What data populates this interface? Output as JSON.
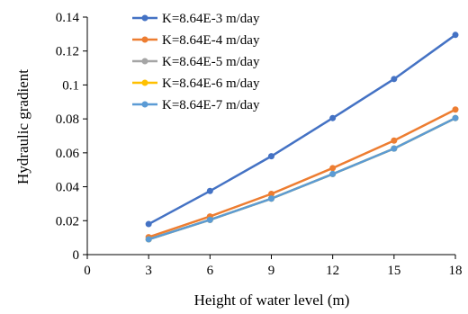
{
  "chart_data": {
    "type": "line",
    "title": "",
    "xlabel": "Height of water level (m)",
    "ylabel": "Hydraulic gradient",
    "x": [
      3,
      6,
      9,
      12,
      15,
      18
    ],
    "xlim": [
      0,
      18
    ],
    "ylim": [
      0,
      0.14
    ],
    "xticks": [
      "0",
      "3",
      "6",
      "9",
      "12",
      "15",
      "18"
    ],
    "yticks": [
      "0",
      "0.02",
      "0.04",
      "0.06",
      "0.08",
      "0.1",
      "0.12",
      "0.14"
    ],
    "grid": false,
    "legend_position": "top-right",
    "series": [
      {
        "name": "K=8.64E-3 m/day",
        "color": "#4472C4",
        "values": [
          0.018,
          0.0375,
          0.058,
          0.0805,
          0.1035,
          0.1295
        ]
      },
      {
        "name": "K=8.64E-4 m/day",
        "color": "#ED7D31",
        "values": [
          0.0103,
          0.0225,
          0.0358,
          0.051,
          0.0672,
          0.0855
        ]
      },
      {
        "name": "K=8.64E-5 m/day",
        "color": "#A5A5A5",
        "values": [
          0.009,
          0.0205,
          0.033,
          0.0475,
          0.0625,
          0.0805
        ]
      },
      {
        "name": "K=8.64E-6 m/day",
        "color": "#FFC000",
        "values": [
          0.009,
          0.0205,
          0.033,
          0.0475,
          0.0625,
          0.0805
        ]
      },
      {
        "name": "K=8.64E-7 m/day",
        "color": "#5B9BD5",
        "values": [
          0.009,
          0.0205,
          0.033,
          0.0475,
          0.0625,
          0.0805
        ]
      }
    ]
  }
}
